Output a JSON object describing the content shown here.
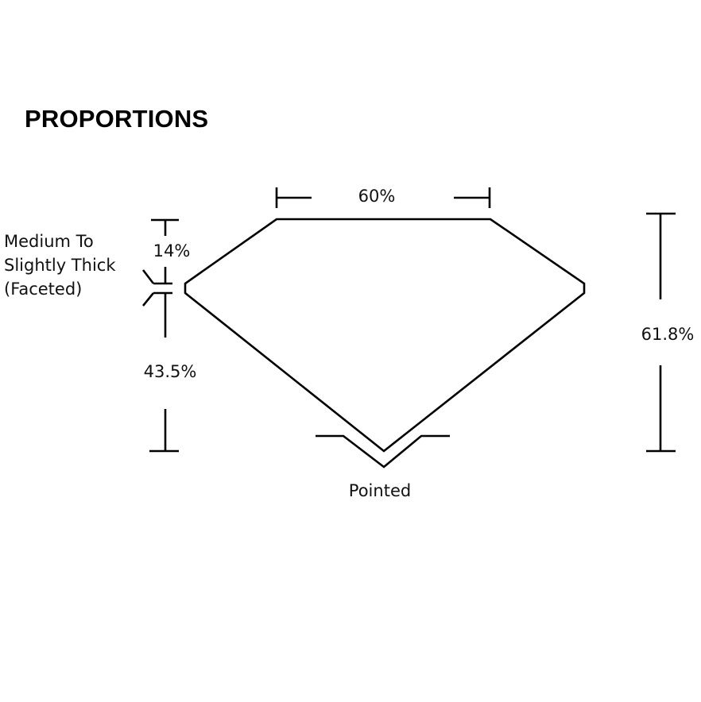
{
  "title": "PROPORTIONS",
  "labels": {
    "table": "60%",
    "crown": "14%",
    "girdle": [
      "Medium To",
      "Slightly Thick",
      "(Faceted)"
    ],
    "pavilion": "43.5%",
    "depth": "61.8%",
    "culet": "Pointed"
  }
}
